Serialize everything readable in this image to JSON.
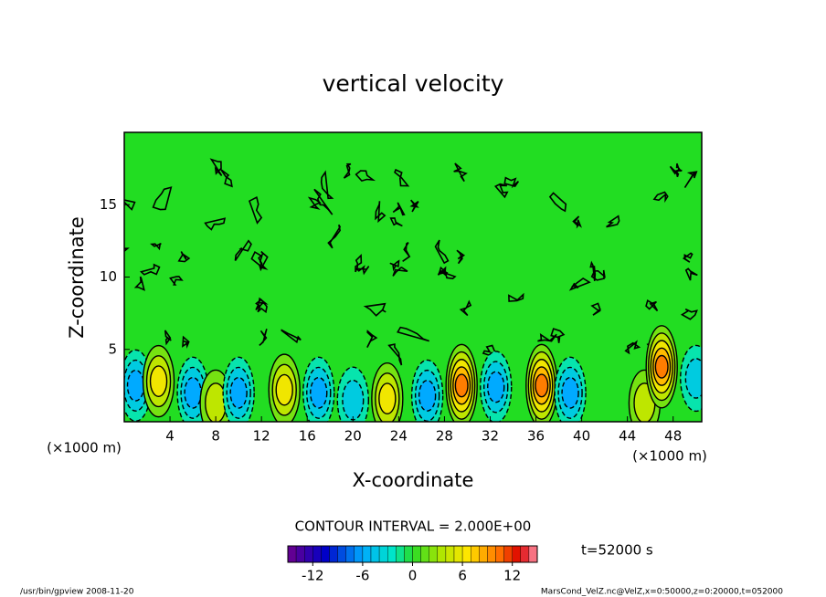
{
  "chart_data": {
    "type": "contour",
    "title": "vertical velocity",
    "x_label": "X-coordinate",
    "y_label": "Z-coordinate",
    "x_unit": "(×1000 m)",
    "y_unit": "(×1000 m)",
    "xlim": [
      0,
      50.5
    ],
    "ylim": [
      0,
      20
    ],
    "xticks": [
      4,
      8,
      12,
      16,
      20,
      24,
      28,
      32,
      36,
      40,
      44,
      48
    ],
    "yticks": [
      5,
      10,
      15
    ],
    "contour_interval_label": "CONTOUR INTERVAL = 2.000E+00",
    "time_label": "t=52000 s",
    "clim": [
      -15,
      15
    ],
    "cticks": [
      -12,
      -6,
      0,
      6,
      12
    ],
    "cells": [
      {
        "x": 1,
        "z": 2.5,
        "value": -6
      },
      {
        "x": 3,
        "z": 2.8,
        "value": 6
      },
      {
        "x": 6,
        "z": 2,
        "value": -6
      },
      {
        "x": 8,
        "z": 1.3,
        "value": 4
      },
      {
        "x": 10,
        "z": 2,
        "value": -6
      },
      {
        "x": 14,
        "z": 2.2,
        "value": 6
      },
      {
        "x": 17,
        "z": 2,
        "value": -6
      },
      {
        "x": 20,
        "z": 1.5,
        "value": -4
      },
      {
        "x": 23,
        "z": 1.6,
        "value": 6
      },
      {
        "x": 26.5,
        "z": 1.8,
        "value": -6
      },
      {
        "x": 29.5,
        "z": 2.5,
        "value": 10
      },
      {
        "x": 32.5,
        "z": 2.4,
        "value": -6
      },
      {
        "x": 36.5,
        "z": 2.5,
        "value": 10
      },
      {
        "x": 39,
        "z": 2,
        "value": -6
      },
      {
        "x": 45.5,
        "z": 1.3,
        "value": 4
      },
      {
        "x": 47,
        "z": 3.8,
        "value": 10
      },
      {
        "x": 50,
        "z": 3,
        "value": -4
      }
    ],
    "footer_left": "/usr/bin/gpview   2008-11-20",
    "footer_right": "MarsCond_VelZ.nc@VelZ,x=0:50000,z=0:20000,t=052000"
  }
}
